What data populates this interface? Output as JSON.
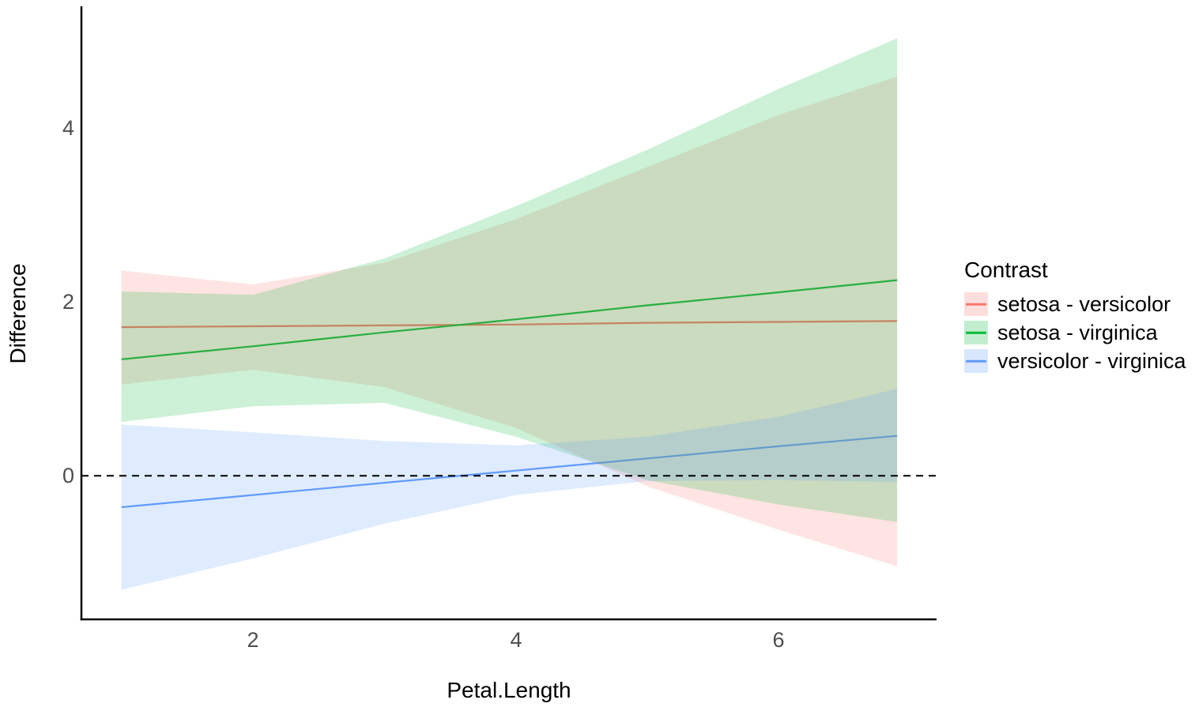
{
  "chart_data": {
    "type": "line",
    "title": "",
    "xlabel": "Petal.Length",
    "ylabel": "Difference",
    "x_ticks": [
      2,
      4,
      6
    ],
    "y_ticks": [
      0,
      2,
      4
    ],
    "xlim": [
      0.695,
      7.2
    ],
    "ylim": [
      -1.65,
      5.38
    ],
    "grid": "off",
    "background": "#ffffff",
    "axis_line_color": "#000000",
    "tick_label_color": "#4d4d4d",
    "reference_line": {
      "y": 0,
      "style": "dashed",
      "color": "#000000"
    },
    "legend": {
      "title": "Contrast",
      "position": "right"
    },
    "ribbon_opacity": 0.2,
    "legend_key_fill_opacity": 0.24,
    "x": [
      1,
      2,
      3,
      4,
      5,
      6,
      6.9
    ],
    "series": [
      {
        "name": "setosa - versicolor",
        "color": "#F8766D",
        "line": [
          1.71,
          1.72,
          1.73,
          1.74,
          1.76,
          1.77,
          1.78
        ],
        "upper": [
          2.36,
          2.2,
          2.45,
          2.95,
          3.55,
          4.15,
          4.59
        ],
        "lower": [
          1.05,
          1.22,
          1.02,
          0.55,
          -0.12,
          -0.62,
          -1.04
        ]
      },
      {
        "name": "setosa - virginica",
        "color": "#00BA38",
        "line": [
          1.34,
          1.49,
          1.65,
          1.8,
          1.96,
          2.11,
          2.25
        ],
        "upper": [
          2.12,
          2.08,
          2.5,
          3.1,
          3.75,
          4.45,
          5.03
        ],
        "lower": [
          0.62,
          0.8,
          0.84,
          0.45,
          -0.05,
          -0.33,
          -0.53
        ]
      },
      {
        "name": "versicolor - virginica",
        "color": "#619CFF",
        "line": [
          -0.36,
          -0.22,
          -0.08,
          0.06,
          0.2,
          0.34,
          0.46
        ],
        "upper": [
          0.59,
          0.5,
          0.4,
          0.35,
          0.45,
          0.68,
          1.0
        ],
        "lower": [
          -1.31,
          -0.95,
          -0.55,
          -0.22,
          -0.06,
          -0.05,
          -0.07
        ]
      }
    ]
  }
}
